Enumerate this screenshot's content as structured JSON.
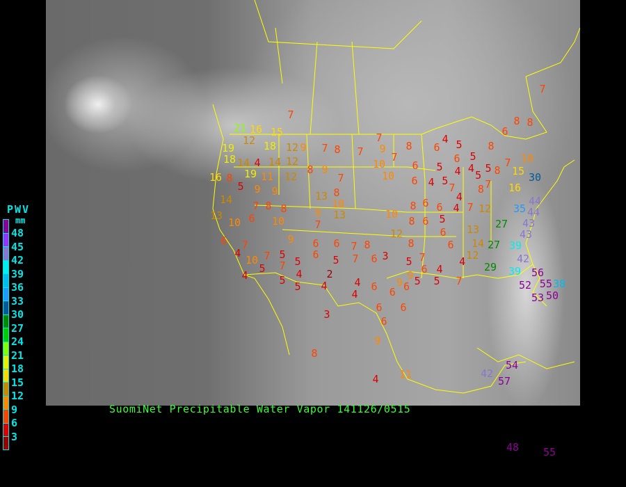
{
  "title": "SuomiNet Precipitable Water Vapor 141126/0515",
  "legend": {
    "title": "PWV",
    "unit": "mm",
    "ticks": [
      "48",
      "45",
      "42",
      "39",
      "36",
      "33",
      "30",
      "27",
      "24",
      "21",
      "18",
      "15",
      "12",
      "9",
      "6",
      "3"
    ],
    "colors": [
      "#8c0096",
      "#9a32ff",
      "#8877cc",
      "#00eeee",
      "#00bbee",
      "#2299ff",
      "#005a99",
      "#008a00",
      "#00cc00",
      "#88ff00",
      "#eeee00",
      "#ffd700",
      "#cc8800",
      "#ff8800",
      "#ff4400",
      "#dd0000",
      "#990000"
    ]
  },
  "stations": [
    7,
    7,
    8,
    8,
    6,
    21,
    16,
    15,
    19,
    12,
    18,
    12,
    9,
    7,
    8,
    7,
    9,
    7,
    8,
    4,
    5,
    6,
    8,
    18,
    14,
    4,
    14,
    12,
    8,
    9,
    7,
    10,
    7,
    6,
    5,
    6,
    4,
    5,
    4,
    5,
    8,
    7,
    10,
    15,
    30,
    19,
    11,
    12,
    16,
    8,
    5,
    9,
    9,
    10,
    6,
    4,
    5,
    7,
    5,
    7,
    8,
    16,
    13,
    8,
    10,
    14,
    7,
    8,
    8,
    9,
    13,
    10,
    8,
    6,
    6,
    5,
    4,
    4,
    7,
    12,
    35,
    44,
    44,
    13,
    10,
    6,
    10,
    7,
    8,
    6,
    6,
    27,
    43,
    43,
    12,
    13,
    6,
    7,
    6,
    6,
    7,
    8,
    8,
    6,
    14,
    27,
    39,
    9,
    4,
    10,
    5,
    5,
    7,
    7,
    6,
    3,
    5,
    7,
    12,
    42,
    4,
    4,
    5,
    7,
    6,
    5,
    2,
    4,
    29,
    39,
    56,
    5,
    5,
    4,
    4,
    6,
    9,
    9,
    5,
    6,
    4,
    5,
    7,
    52,
    55,
    38,
    4,
    6,
    6,
    53,
    50,
    6,
    3,
    6,
    6,
    8,
    9,
    4,
    11,
    54,
    42,
    57,
    48,
    55
  ]
}
